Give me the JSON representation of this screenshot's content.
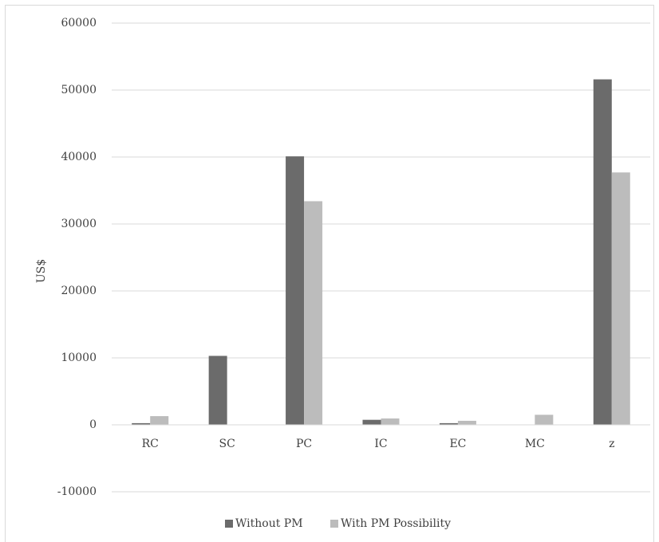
{
  "chart_data": {
    "type": "bar",
    "categories": [
      "RC",
      "SC",
      "PC",
      "IC",
      "EC",
      "MC",
      "z"
    ],
    "series": [
      {
        "name": "Without PM",
        "color": "#6b6b6b",
        "values": [
          250,
          10300,
          40100,
          750,
          250,
          0,
          51600
        ]
      },
      {
        "name": "With PM Possibility",
        "color": "#bcbcbc",
        "values": [
          1300,
          0,
          33400,
          950,
          600,
          1500,
          37700
        ]
      }
    ],
    "ylabel": "US$",
    "xlabel": "",
    "ylim": [
      -10000,
      60000
    ],
    "yticks": [
      -10000,
      0,
      10000,
      20000,
      30000,
      40000,
      50000,
      60000
    ],
    "grid": true,
    "legend_position": "bottom"
  }
}
